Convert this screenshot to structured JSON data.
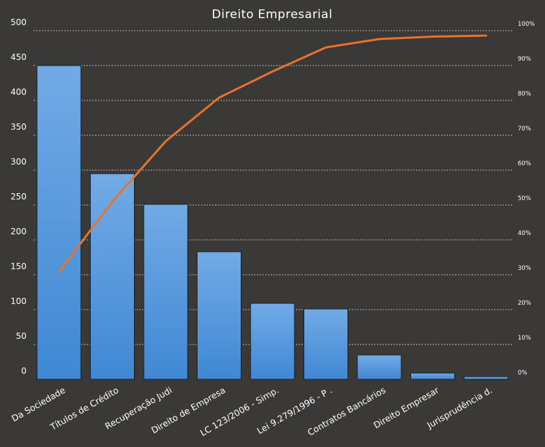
{
  "chart_data": {
    "type": "bar",
    "title": "Direito Empresarial",
    "categories": [
      "Da Sociedade",
      "Títulos de Crédito",
      "Recuperação Judi",
      "Direito de Empresa",
      "LC 123/2006 - Simp.",
      "Lei 9.279/1996 - P .",
      "Contratos Bancários",
      "Direito Empresar",
      "Jurisprudência d."
    ],
    "series": [
      {
        "type": "bar",
        "values": [
          450,
          295,
          251,
          183,
          109,
          101,
          35,
          9,
          4
        ],
        "color": "#5a9fe0"
      },
      {
        "type": "line",
        "axis": "secondary",
        "values": [
          30.8,
          51,
          68.3,
          80.8,
          88.3,
          95.2,
          97.6,
          98.3,
          98.6
        ],
        "color": "#e8742c"
      }
    ],
    "ylim": [
      0,
      500
    ],
    "y_ticks": [
      "0",
      "50",
      "100",
      "150",
      "200",
      "250",
      "300",
      "350",
      "400",
      "450",
      "500"
    ],
    "y2lim": [
      0,
      100
    ],
    "y2_ticks": [
      "0%",
      "10%",
      "20%",
      "30%",
      "40%",
      "50%",
      "60%",
      "70%",
      "80%",
      "90%",
      "100%"
    ],
    "grid": true,
    "legend": "none"
  }
}
